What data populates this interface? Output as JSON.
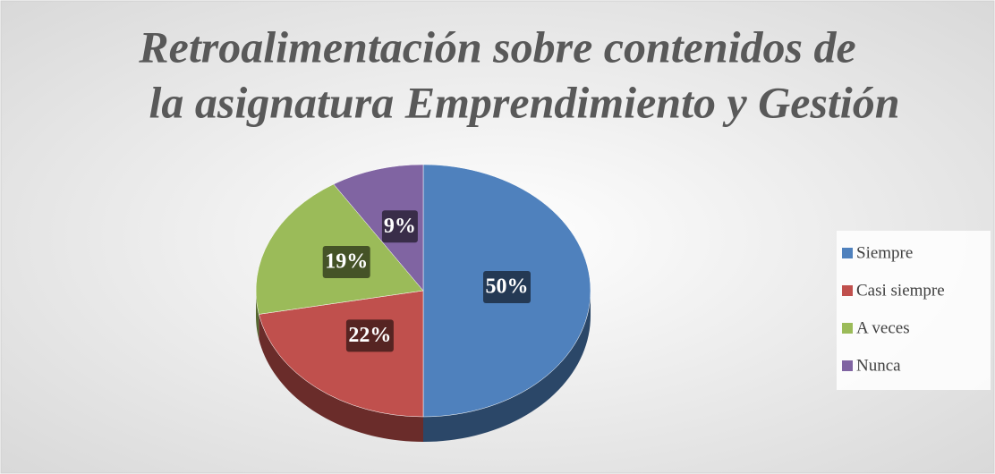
{
  "chart_data": {
    "type": "pie",
    "title": [
      "Retroalimentación sobre contenidos de",
      "la asignatura Emprendimiento y Gestión"
    ],
    "categories": [
      "Siempre",
      "Casi siempre",
      "A veces",
      "Nunca"
    ],
    "values": [
      50,
      22,
      19,
      9
    ],
    "value_labels": [
      "50%",
      "22%",
      "19%",
      "9%"
    ],
    "colors": [
      "#4f81bd",
      "#c0504d",
      "#9bbb59",
      "#8064a2"
    ],
    "legend": "right"
  }
}
